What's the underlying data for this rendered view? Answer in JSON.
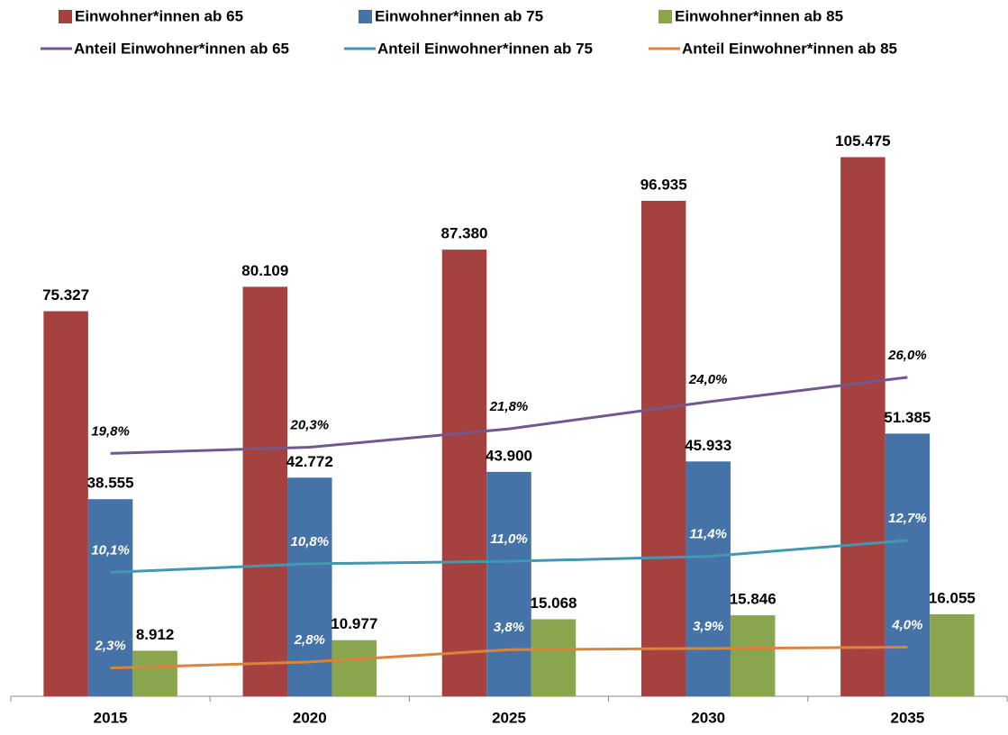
{
  "chart_data": {
    "type": "bar",
    "categories": [
      "2015",
      "2020",
      "2025",
      "2030",
      "2035"
    ],
    "ylim": [
      0,
      120000
    ],
    "y2lim": [
      0,
      50
    ],
    "legend": "top",
    "series": [
      {
        "name": "Einwohner*innen ab 65",
        "type": "bar",
        "color": "#A5423F",
        "values": [
          75327,
          80109,
          87380,
          96935,
          105475
        ],
        "value_labels": [
          "75.327",
          "80.109",
          "87.380",
          "96.935",
          "105.475"
        ]
      },
      {
        "name": "Einwohner*innen ab 75",
        "type": "bar",
        "color": "#4572A7",
        "values": [
          38555,
          42772,
          43900,
          45933,
          51385
        ],
        "value_labels": [
          "38.555",
          "42.772",
          "43.900",
          "45.933",
          "51.385"
        ]
      },
      {
        "name": "Einwohner*innen ab 85",
        "type": "bar",
        "color": "#89A54E",
        "values": [
          8912,
          10977,
          15068,
          15846,
          16055
        ],
        "value_labels": [
          "8.912",
          "10.977",
          "15.068",
          "15.846",
          "16.055"
        ]
      },
      {
        "name": "Anteil Einwohner*innen ab 65",
        "type": "line",
        "axis": "y2",
        "color": "#71588F",
        "label_color": "#000000",
        "values": [
          19.8,
          20.3,
          21.8,
          24.0,
          26.0
        ],
        "value_labels": [
          "19,8%",
          "20,3%",
          "21,8%",
          "24,0%",
          "26,0%"
        ]
      },
      {
        "name": "Anteil Einwohner*innen ab 75",
        "type": "line",
        "axis": "y2",
        "color": "#4198AF",
        "label_color": "#ffffff",
        "values": [
          10.1,
          10.8,
          11.0,
          11.4,
          12.7
        ],
        "value_labels": [
          "10,1%",
          "10,8%",
          "11,0%",
          "11,4%",
          "12,7%"
        ]
      },
      {
        "name": "Anteil Einwohner*innen ab 85",
        "type": "line",
        "axis": "y2",
        "color": "#DB843D",
        "label_color": "#ffffff",
        "values": [
          2.3,
          2.8,
          3.8,
          3.9,
          4.0
        ],
        "value_labels": [
          "2,3%",
          "2,8%",
          "3,8%",
          "3,9%",
          "4,0%"
        ]
      }
    ]
  }
}
